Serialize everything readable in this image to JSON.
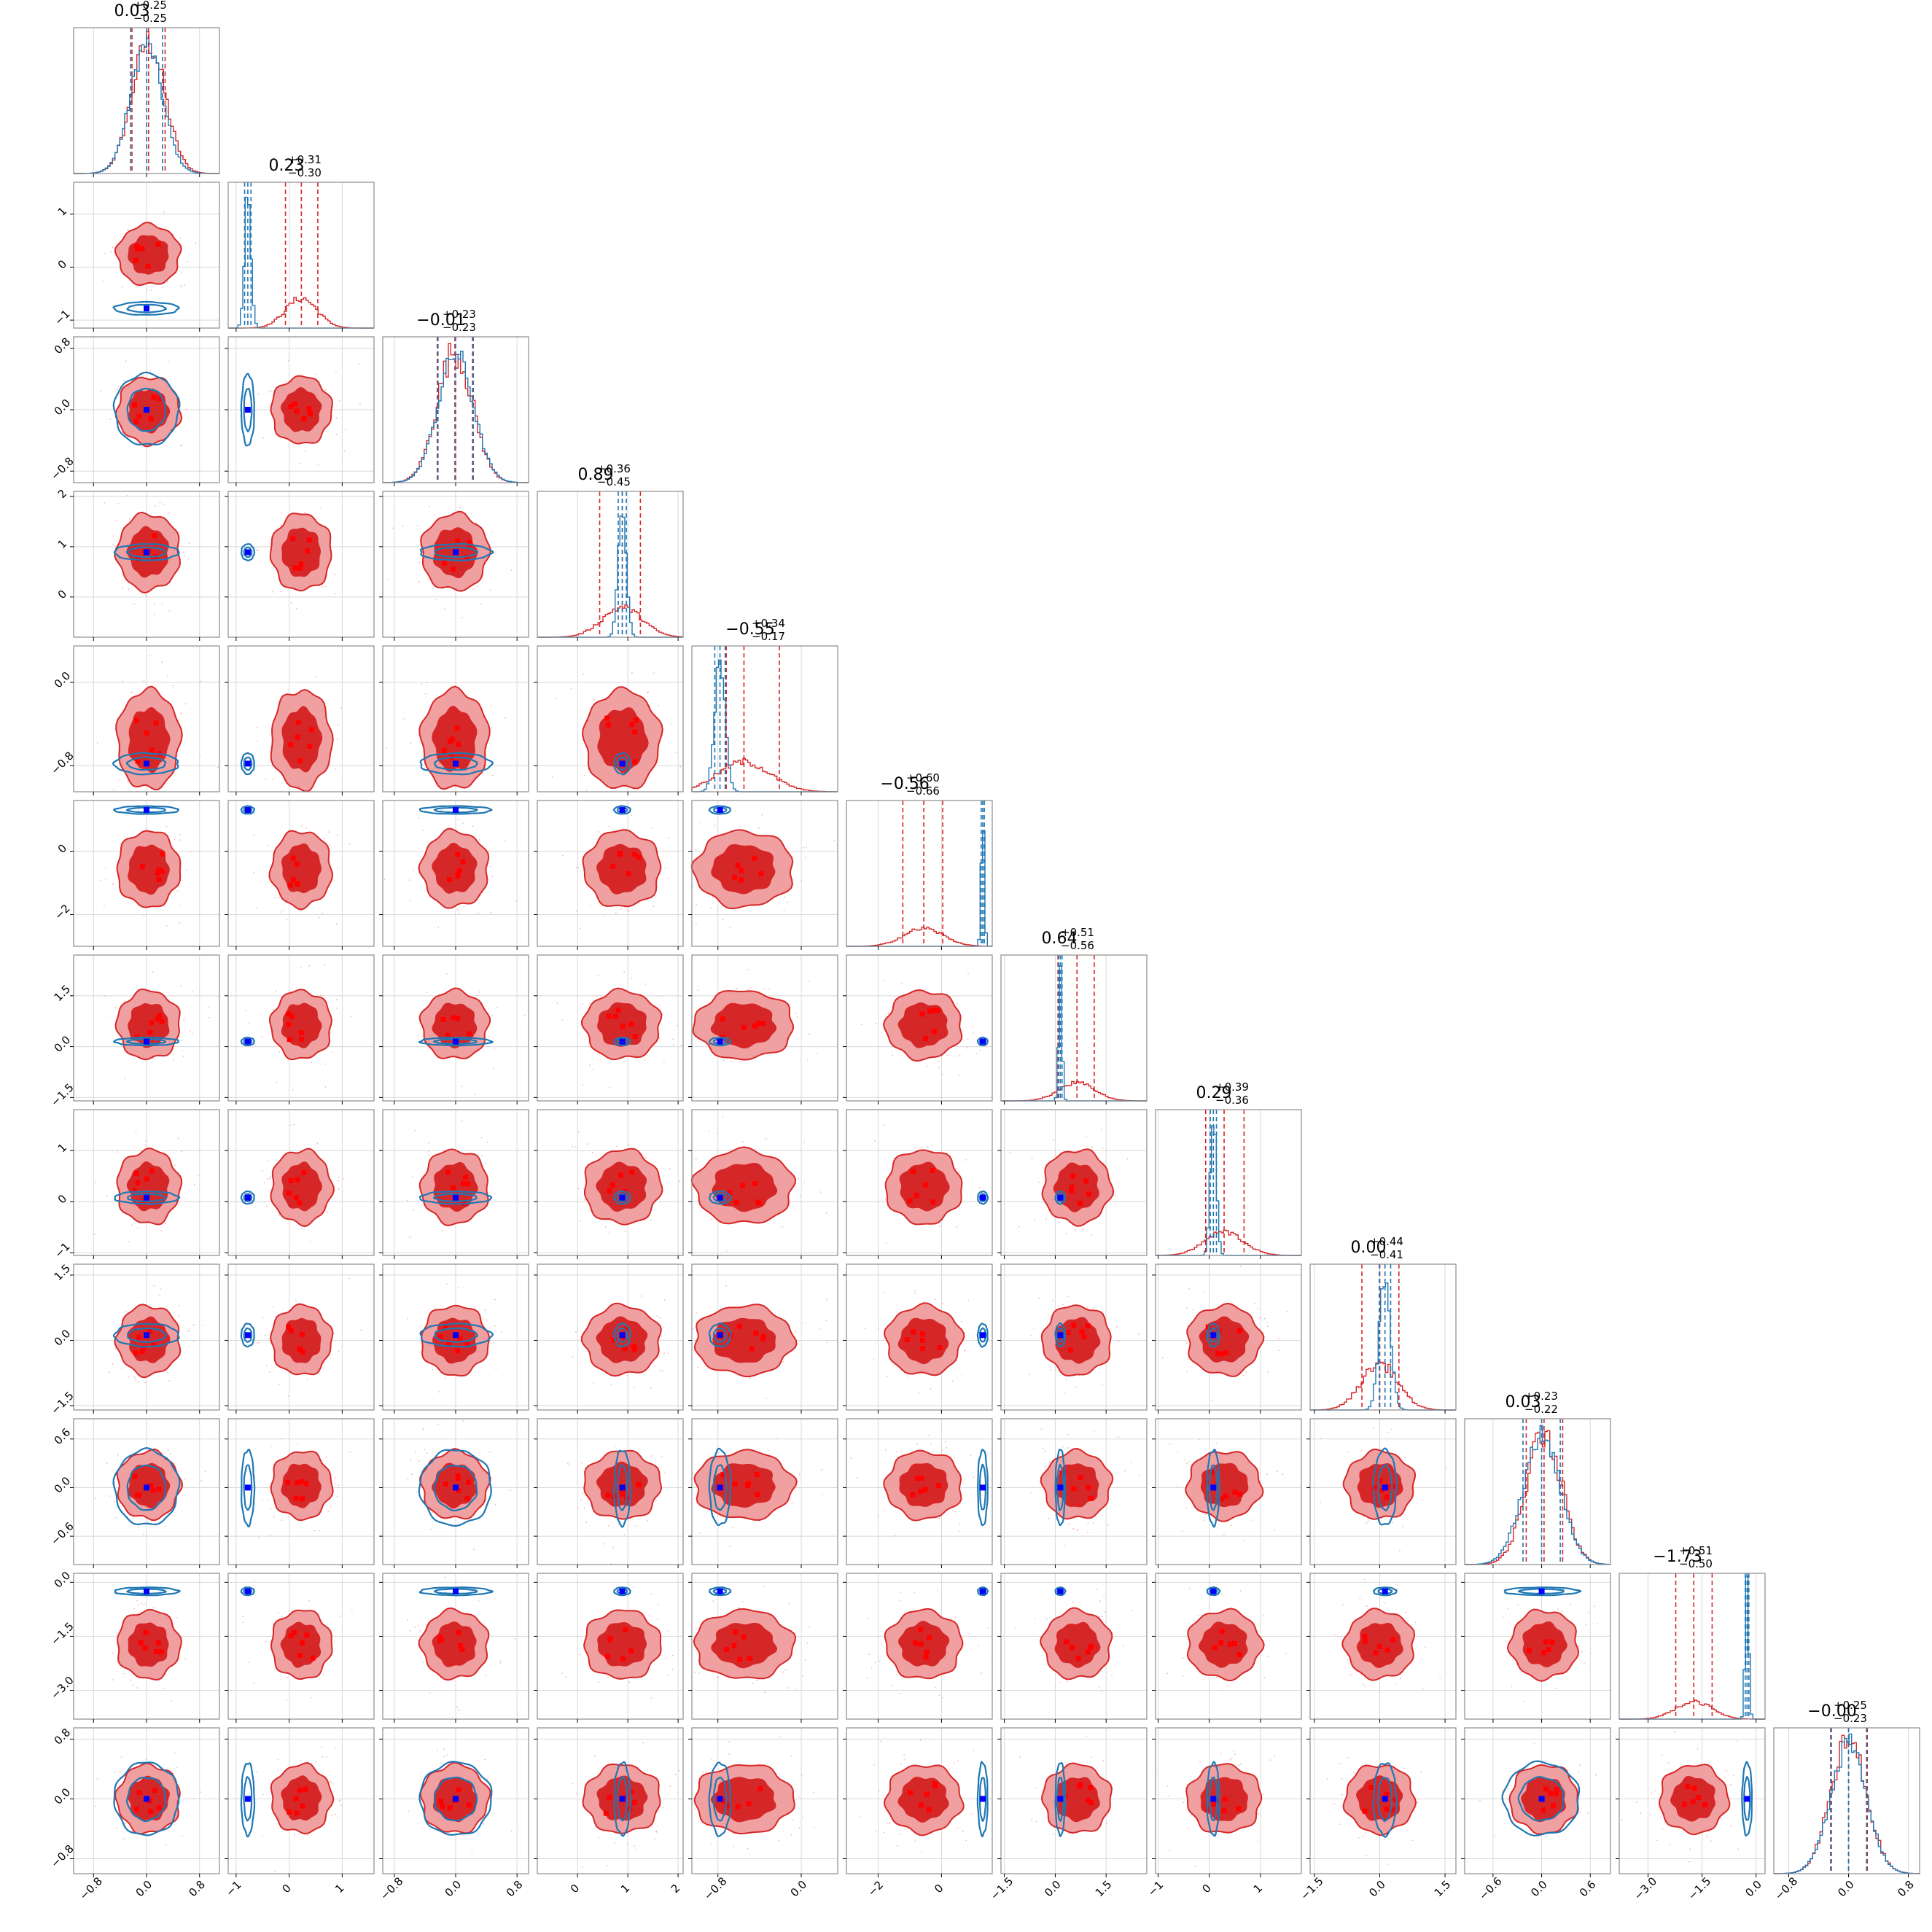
{
  "chart_data": {
    "type": "scatter",
    "subtype": "corner-plot",
    "n_params": 12,
    "grid": true,
    "colors": {
      "blue_line": "#1f77b4",
      "blue_point": "#0000ff",
      "red_line": "#d62728",
      "red_fill_outer": "#f0a0a0",
      "red_fill_inner": "#d62728",
      "red_point": "#ff0000"
    },
    "params": [
      {
        "title_main": "0.03",
        "title_up": "+0.25",
        "title_lo": "−0.25",
        "median": 0.03,
        "q_lo": -0.22,
        "q_hi": 0.28,
        "blue_center": 0.0,
        "blue_sd": 0.24,
        "red_center": 0.03,
        "red_sd": 0.25,
        "truth": 0.0,
        "range": [
          -1.1,
          1.1
        ],
        "ticks": [
          -0.8,
          0.0,
          0.8
        ],
        "tick_labels": [
          "−0.8",
          "0.0",
          "0.8"
        ]
      },
      {
        "title_main": "0.23",
        "title_up": "+0.31",
        "title_lo": "−0.30",
        "median": 0.23,
        "q_lo": -0.07,
        "q_hi": 0.54,
        "blue_center": -0.78,
        "blue_sd": 0.06,
        "red_center": 0.23,
        "red_sd": 0.3,
        "truth": -0.78,
        "range": [
          -1.15,
          1.6
        ],
        "ticks": [
          -1,
          0,
          1
        ],
        "tick_labels": [
          "−1",
          "0",
          "1"
        ]
      },
      {
        "title_main": "−0.01",
        "title_up": "+0.23",
        "title_lo": "−0.23",
        "median": -0.01,
        "q_lo": -0.24,
        "q_hi": 0.22,
        "blue_center": 0.0,
        "blue_sd": 0.23,
        "red_center": -0.01,
        "red_sd": 0.23,
        "truth": 0.0,
        "range": [
          -0.95,
          0.95
        ],
        "ticks": [
          -0.8,
          0.0,
          0.8
        ],
        "tick_labels": [
          "−0.8",
          "0.0",
          "0.8"
        ]
      },
      {
        "title_main": "0.89",
        "title_up": "+0.36",
        "title_lo": "−0.45",
        "median": 0.89,
        "q_lo": 0.44,
        "q_hi": 1.25,
        "blue_center": 0.89,
        "blue_sd": 0.08,
        "red_center": 0.89,
        "red_sd": 0.4,
        "truth": 0.89,
        "range": [
          -0.8,
          2.1
        ],
        "ticks": [
          0,
          1,
          2
        ],
        "tick_labels": [
          "0",
          "1",
          "2"
        ]
      },
      {
        "title_main": "−0.55",
        "title_up": "+0.34",
        "title_lo": "−0.17",
        "median": -0.55,
        "q_lo": -0.72,
        "q_hi": -0.21,
        "blue_center": -0.78,
        "blue_sd": 0.05,
        "red_center": -0.55,
        "red_sd": 0.25,
        "truth": -0.78,
        "range": [
          -1.05,
          0.35
        ],
        "ticks": [
          -0.8,
          0.0
        ],
        "tick_labels": [
          "−0.8",
          "0.0"
        ]
      },
      {
        "title_main": "−0.56",
        "title_up": "+0.60",
        "title_lo": "−0.66",
        "median": -0.56,
        "q_lo": -1.22,
        "q_hi": 0.04,
        "blue_center": 1.3,
        "blue_sd": 0.05,
        "red_center": -0.56,
        "red_sd": 0.63,
        "truth": 1.3,
        "range": [
          -3.0,
          1.6
        ],
        "ticks": [
          -2,
          0
        ],
        "tick_labels": [
          "−2",
          "0"
        ]
      },
      {
        "title_main": "0.64",
        "title_up": "+0.51",
        "title_lo": "−0.56",
        "median": 0.64,
        "q_lo": 0.08,
        "q_hi": 1.15,
        "blue_center": 0.15,
        "blue_sd": 0.05,
        "red_center": 0.64,
        "red_sd": 0.53,
        "truth": 0.15,
        "range": [
          -1.6,
          2.7
        ],
        "ticks": [
          -1.5,
          0.0,
          1.5
        ],
        "tick_labels": [
          "−1.5",
          "0.0",
          "1.5"
        ]
      },
      {
        "title_main": "0.29",
        "title_up": "+0.39",
        "title_lo": "−0.36",
        "median": 0.29,
        "q_lo": -0.07,
        "q_hi": 0.68,
        "blue_center": 0.08,
        "blue_sd": 0.06,
        "red_center": 0.29,
        "red_sd": 0.38,
        "truth": 0.08,
        "range": [
          -1.05,
          1.8
        ],
        "ticks": [
          -1,
          0,
          1
        ],
        "tick_labels": [
          "−1",
          "0",
          "1"
        ]
      },
      {
        "title_main": "0.00",
        "title_up": "+0.44",
        "title_lo": "−0.41",
        "median": 0.0,
        "q_lo": -0.41,
        "q_hi": 0.44,
        "blue_center": 0.12,
        "blue_sd": 0.13,
        "red_center": 0.0,
        "red_sd": 0.42,
        "truth": 0.12,
        "range": [
          -1.6,
          1.75
        ],
        "ticks": [
          -1.5,
          0.0,
          1.5
        ],
        "tick_labels": [
          "−1.5",
          "0.0",
          "1.5"
        ]
      },
      {
        "title_main": "0.03",
        "title_up": "+0.23",
        "title_lo": "−0.22",
        "median": 0.03,
        "q_lo": -0.19,
        "q_hi": 0.26,
        "blue_center": 0.0,
        "blue_sd": 0.23,
        "red_center": 0.03,
        "red_sd": 0.22,
        "truth": 0.0,
        "range": [
          -0.95,
          0.85
        ],
        "ticks": [
          -0.6,
          0.0,
          0.6
        ],
        "tick_labels": [
          "−0.6",
          "0.0",
          "0.6"
        ]
      },
      {
        "title_main": "−1.73",
        "title_up": "+0.51",
        "title_lo": "−0.50",
        "median": -1.73,
        "q_lo": -2.23,
        "q_hi": -1.22,
        "blue_center": -0.25,
        "blue_sd": 0.05,
        "red_center": -1.73,
        "red_sd": 0.5,
        "truth": -0.25,
        "range": [
          -3.8,
          0.25
        ],
        "ticks": [
          -3.0,
          -1.5,
          0.0
        ],
        "tick_labels": [
          "−3.0",
          "−1.5",
          "0.0"
        ]
      },
      {
        "title_main": "−0.00",
        "title_up": "+0.25",
        "title_lo": "−0.23",
        "median": 0.0,
        "q_lo": -0.23,
        "q_hi": 0.25,
        "blue_center": 0.0,
        "blue_sd": 0.24,
        "red_center": 0.0,
        "red_sd": 0.24,
        "truth": 0.0,
        "range": [
          -1.0,
          0.95
        ],
        "ticks": [
          -0.8,
          0.0,
          0.8
        ],
        "tick_labels": [
          "−0.8",
          "0.0",
          "0.8"
        ]
      }
    ]
  }
}
